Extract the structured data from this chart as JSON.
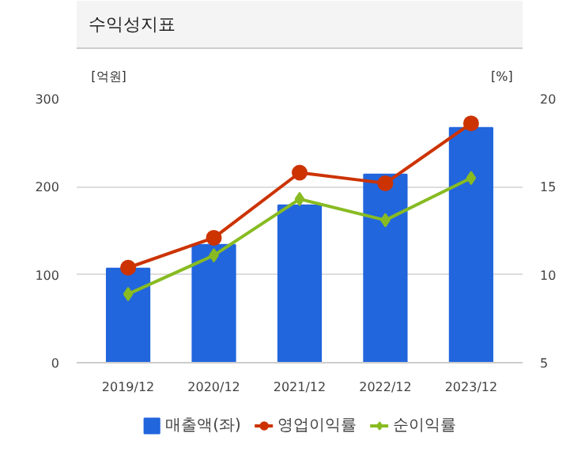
{
  "chart_data": {
    "type": "bar",
    "title": "수익성지표",
    "ylabel": "[억원]",
    "y2label": "[%]",
    "categories": [
      "2019/12",
      "2020/12",
      "2021/12",
      "2022/12",
      "2023/12"
    ],
    "series": [
      {
        "name": "매출액(좌)",
        "color": "#2266dd",
        "values": [
          107,
          134,
          179,
          214,
          267
        ]
      },
      {
        "name": "영업이익률",
        "type": "line",
        "axis": "y2",
        "marker": "circle",
        "color": "#cc3300",
        "values": [
          10.4,
          12.1,
          15.8,
          15.2,
          18.6
        ]
      },
      {
        "name": "순이익률",
        "type": "line",
        "axis": "y2",
        "marker": "diamond",
        "color": "#88bb22",
        "values": [
          8.9,
          11.1,
          14.3,
          13.1,
          15.5
        ]
      }
    ],
    "ylim": [
      0,
      300
    ],
    "yticks": [
      0,
      100,
      200,
      300
    ],
    "y2lim": [
      5,
      20
    ],
    "y2ticks": [
      5,
      10,
      15,
      20
    ],
    "grid": "y",
    "legend": "bottom"
  }
}
